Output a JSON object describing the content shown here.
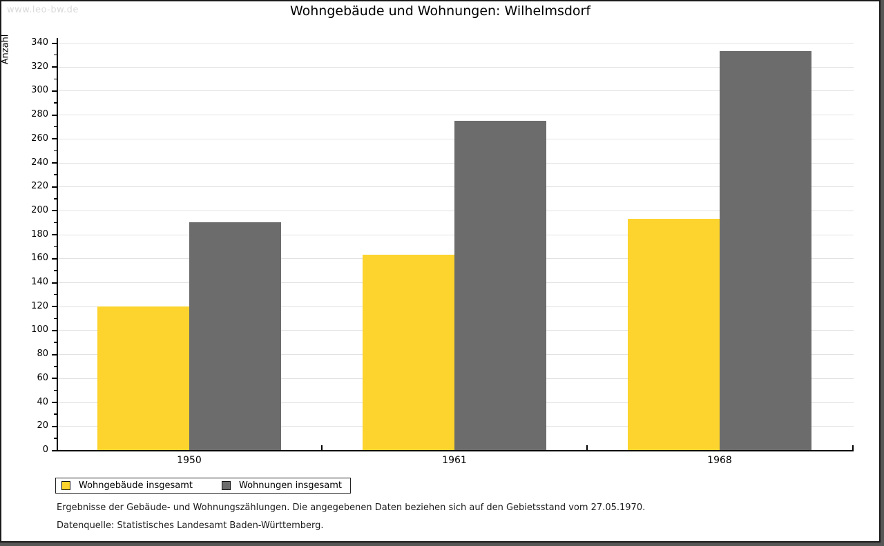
{
  "watermark": "www.leo-bw.de",
  "chart_data": {
    "type": "bar",
    "title": "Wohngebäude und Wohnungen: Wilhelmsdorf",
    "categories": [
      "1950",
      "1961",
      "1968"
    ],
    "series": [
      {
        "name": "Wohngebäude insgesamt",
        "color": "#fcd42d",
        "values": [
          120,
          163,
          193
        ]
      },
      {
        "name": "Wohnungen insgesamt",
        "color": "#6c6c6c",
        "values": [
          190,
          275,
          333
        ]
      }
    ],
    "xlabel": "",
    "ylabel": "Anzahl",
    "ylim": [
      0,
      340
    ],
    "y_major_step": 20,
    "y_minor_step": 10,
    "grid": true,
    "legend_position": "bottom-left"
  },
  "footer": {
    "line1": "Ergebnisse der Gebäude- und Wohnungszählungen. Die angegebenen Daten beziehen sich auf den Gebietsstand vom 27.05.1970.",
    "line2": "Datenquelle: Statistisches Landesamt Baden-Württemberg."
  }
}
